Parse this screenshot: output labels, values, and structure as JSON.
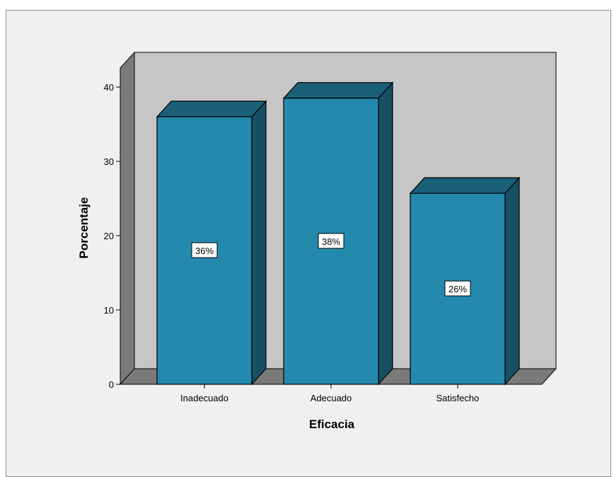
{
  "chart_data": {
    "type": "bar",
    "style": "3d",
    "categories": [
      "Inadecuado",
      "Adecuado",
      "Satisfecho"
    ],
    "values": [
      36,
      38.5,
      25.7
    ],
    "data_labels": [
      "36%",
      "38%",
      "26%"
    ],
    "title": "",
    "xlabel": "Eficacia",
    "ylabel": "Porcentaje",
    "ylim": [
      0,
      40
    ],
    "yticks": [
      "0",
      "10",
      "20",
      "30",
      "40"
    ],
    "grid": false,
    "legend": "none",
    "colors": {
      "bar_front": "#248aad",
      "bar_top": "#1c5f79",
      "bar_side": "#174f63",
      "wall_back": "#c6c6c6",
      "wall_side": "#7a7a7a",
      "floor": "#7a7a7a",
      "outline": "#000000"
    }
  }
}
